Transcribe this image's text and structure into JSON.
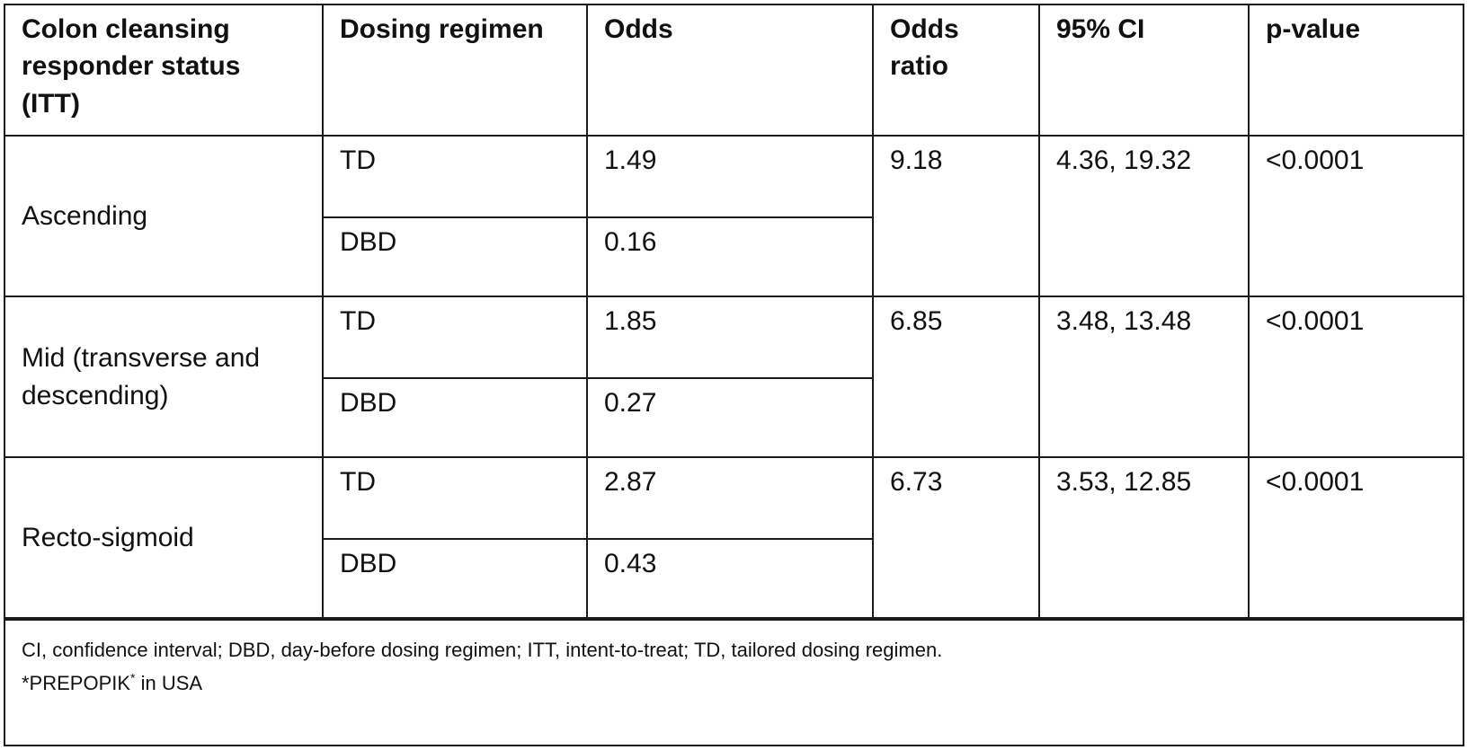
{
  "table": {
    "headers": [
      "Colon cleansing responder status (ITT)",
      "Dosing regimen",
      "Odds",
      "Odds ratio",
      "95% CI",
      "p-value"
    ],
    "groups": [
      {
        "status": "Ascending",
        "rows": [
          {
            "regimen": "TD",
            "odds": "1.49"
          },
          {
            "regimen": "DBD",
            "odds": "0.16"
          }
        ],
        "odds_ratio": "9.18",
        "ci": "4.36, 19.32",
        "p_value": "<0.0001"
      },
      {
        "status": "Mid (transverse and descending)",
        "rows": [
          {
            "regimen": "TD",
            "odds": "1.85"
          },
          {
            "regimen": "DBD",
            "odds": "0.27"
          }
        ],
        "odds_ratio": "6.85",
        "ci": "3.48, 13.48",
        "p_value": "<0.0001"
      },
      {
        "status": "Recto-sigmoid",
        "rows": [
          {
            "regimen": "TD",
            "odds": "2.87"
          },
          {
            "regimen": "DBD",
            "odds": "0.43"
          }
        ],
        "odds_ratio": "6.73",
        "ci": "3.53, 12.85",
        "p_value": "<0.0001"
      }
    ]
  },
  "footer": {
    "abbreviations": "CI, confidence interval; DBD, day-before dosing regimen;  ITT, intent-to-treat;  TD, tailored dosing regimen.",
    "note_prefix": "*PREPOPIK",
    "note_sup": "*",
    "note_suffix": " in USA"
  }
}
